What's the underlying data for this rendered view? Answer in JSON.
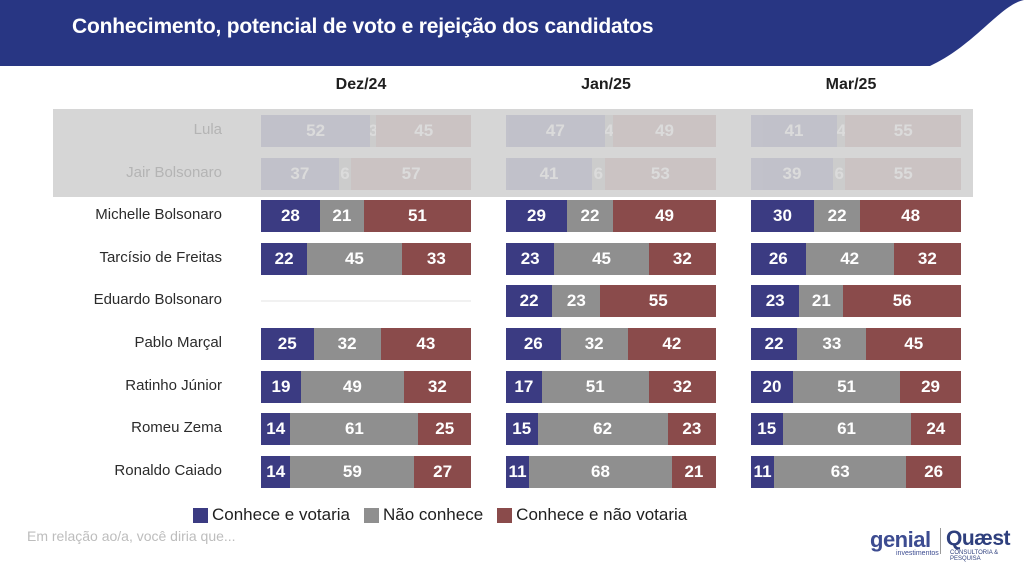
{
  "header": {
    "title": "Conhecimento, potencial de voto e rejeição dos candidatos",
    "bg_color": "#283683"
  },
  "chart_data": {
    "type": "bar",
    "orientation": "horizontal",
    "stacked": true,
    "normalized_percent": true,
    "periods": [
      "Dez/24",
      "Jan/25",
      "Mar/25"
    ],
    "categories": [
      "Lula",
      "Jair Bolsonaro",
      "Michelle Bolsonaro",
      "Tarcísio de Freitas",
      "Eduardo Bolsonaro",
      "Pablo Marçal",
      "Ratinho Júnior",
      "Romeu Zema",
      "Ronaldo Caiado"
    ],
    "highlighted_background_rows": [
      "Lula",
      "Jair Bolsonaro"
    ],
    "series": [
      {
        "name": "Conhece e votaria",
        "color": "#3b3b82",
        "values": {
          "Dez/24": [
            52,
            37,
            28,
            22,
            null,
            25,
            19,
            14,
            14
          ],
          "Jan/25": [
            47,
            41,
            29,
            23,
            22,
            26,
            17,
            15,
            11
          ],
          "Mar/25": [
            41,
            39,
            30,
            26,
            23,
            22,
            20,
            15,
            11
          ]
        }
      },
      {
        "name": "Não conhece",
        "color": "#8f8f8f",
        "values": {
          "Dez/24": [
            3,
            6,
            21,
            45,
            null,
            32,
            49,
            61,
            59
          ],
          "Jan/25": [
            4,
            6,
            22,
            45,
            23,
            32,
            51,
            62,
            68
          ],
          "Mar/25": [
            4,
            6,
            22,
            42,
            21,
            33,
            51,
            61,
            63
          ]
        }
      },
      {
        "name": "Conhece e não votaria",
        "color": "#8a4b4b",
        "values": {
          "Dez/24": [
            45,
            57,
            51,
            33,
            null,
            43,
            32,
            25,
            27
          ],
          "Jan/25": [
            49,
            53,
            49,
            32,
            55,
            42,
            32,
            23,
            21
          ],
          "Mar/25": [
            55,
            55,
            48,
            32,
            56,
            45,
            29,
            24,
            26
          ]
        }
      }
    ],
    "legend_position": "bottom",
    "grid": false
  },
  "footnote": "Em relação ao/a, você diria que...",
  "logos": {
    "genial": "genial",
    "genial_sub": "investimentos",
    "quaest": "Quæst",
    "quaest_sub": "CONSULTORIA & PESQUISA"
  }
}
